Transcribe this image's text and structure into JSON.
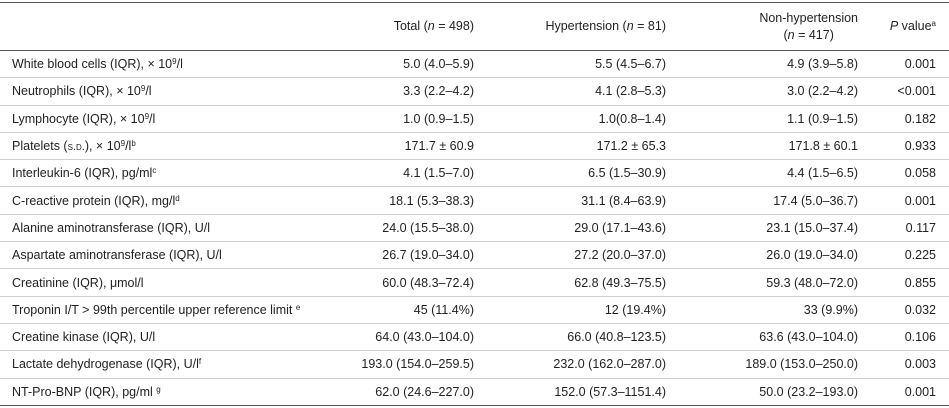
{
  "table": {
    "columns": [
      [],
      [
        [
          "Total (",
          {
            "i": "n"
          },
          " = 498)"
        ]
      ],
      [
        [
          "Hypertension (",
          {
            "i": "n"
          },
          " = 81)"
        ]
      ],
      [
        [
          "Non-hypertension"
        ],
        [
          "(",
          {
            "i": "n"
          },
          " = 417)"
        ]
      ],
      [
        [
          {
            "i": "P"
          },
          " value",
          {
            "sup": "a"
          }
        ]
      ]
    ],
    "rows": [
      {
        "label": [
          "White blood cells (IQR), × 10",
          {
            "sup": "9"
          },
          "/l"
        ],
        "cells": [
          "5.0 (4.0–5.9)",
          "5.5 (4.5–6.7)",
          "4.9 (3.9–5.8)",
          "0.001"
        ]
      },
      {
        "label": [
          "Neutrophils (IQR), × 10",
          {
            "sup": "9"
          },
          "/l"
        ],
        "cells": [
          "3.3 (2.2–4.2)",
          "4.1 (2.8–5.3)",
          "3.0 (2.2–4.2)",
          "<0.001"
        ]
      },
      {
        "label": [
          "Lymphocyte (IQR), × 10",
          {
            "sup": "9"
          },
          "/l"
        ],
        "cells": [
          "1.0 (0.9–1.5)",
          "1.0(0.8–1.4)",
          "1.1 (0.9–1.5)",
          "0.182"
        ]
      },
      {
        "label": [
          "Platelets (",
          {
            "sc": "s.d."
          },
          "), × 10",
          {
            "sup": "9"
          },
          "/l",
          {
            "sup": "b"
          }
        ],
        "cells": [
          "171.7 ± 60.9",
          "171.2 ± 65.3",
          "171.8 ± 60.1",
          "0.933"
        ]
      },
      {
        "label": [
          "Interleukin-6 (IQR), pg/ml",
          {
            "sup": "c"
          }
        ],
        "cells": [
          "4.1 (1.5–7.0)",
          "6.5 (1.5–30.9)",
          "4.4 (1.5–6.5)",
          "0.058"
        ]
      },
      {
        "label": [
          "C-reactive protein (IQR), mg/l",
          {
            "sup": "d"
          }
        ],
        "cells": [
          "18.1 (5.3–38.3)",
          "31.1 (8.4–63.9)",
          "17.4 (5.0–36.7)",
          "0.001"
        ]
      },
      {
        "label": [
          "Alanine aminotransferase (IQR), U/l"
        ],
        "cells": [
          "24.0 (15.5–38.0)",
          "29.0 (17.1–43.6)",
          "23.1 (15.0–37.4)",
          "0.117"
        ]
      },
      {
        "label": [
          "Aspartate aminotransferase (IQR), U/l"
        ],
        "cells": [
          "26.7 (19.0–34.0)",
          "27.2 (20.0–37.0)",
          "26.0 (19.0–34.0)",
          "0.225"
        ]
      },
      {
        "label": [
          "Creatinine (IQR), μmol/l"
        ],
        "cells": [
          "60.0 (48.3–72.4)",
          "62.8 (49.3–75.5)",
          "59.3 (48.0–72.0)",
          "0.855"
        ]
      },
      {
        "label": [
          "Troponin I/T > 99th percentile upper reference limit ",
          {
            "sup": "e"
          }
        ],
        "cells": [
          "45 (11.4%)",
          "12 (19.4%)",
          "33 (9.9%)",
          "0.032"
        ]
      },
      {
        "label": [
          "Creatine kinase (IQR), U/l"
        ],
        "cells": [
          "64.0 (43.0–104.0)",
          "66.0 (40.8–123.5)",
          "63.6 (43.0–104.0)",
          "0.106"
        ]
      },
      {
        "label": [
          "Lactate dehydrogenase (IQR), U/l",
          {
            "sup": "f"
          }
        ],
        "cells": [
          "193.0 (154.0–259.5)",
          "232.0 (162.0–287.0)",
          "189.0 (153.0–250.0)",
          "0.003"
        ]
      },
      {
        "label": [
          "NT-Pro-BNP (IQR), pg/ml ",
          {
            "sup": "g"
          }
        ],
        "cells": [
          "62.0 (24.6–227.0)",
          "152.0 (57.3–1151.4)",
          "50.0 (23.2–193.0)",
          "0.001"
        ]
      }
    ]
  }
}
